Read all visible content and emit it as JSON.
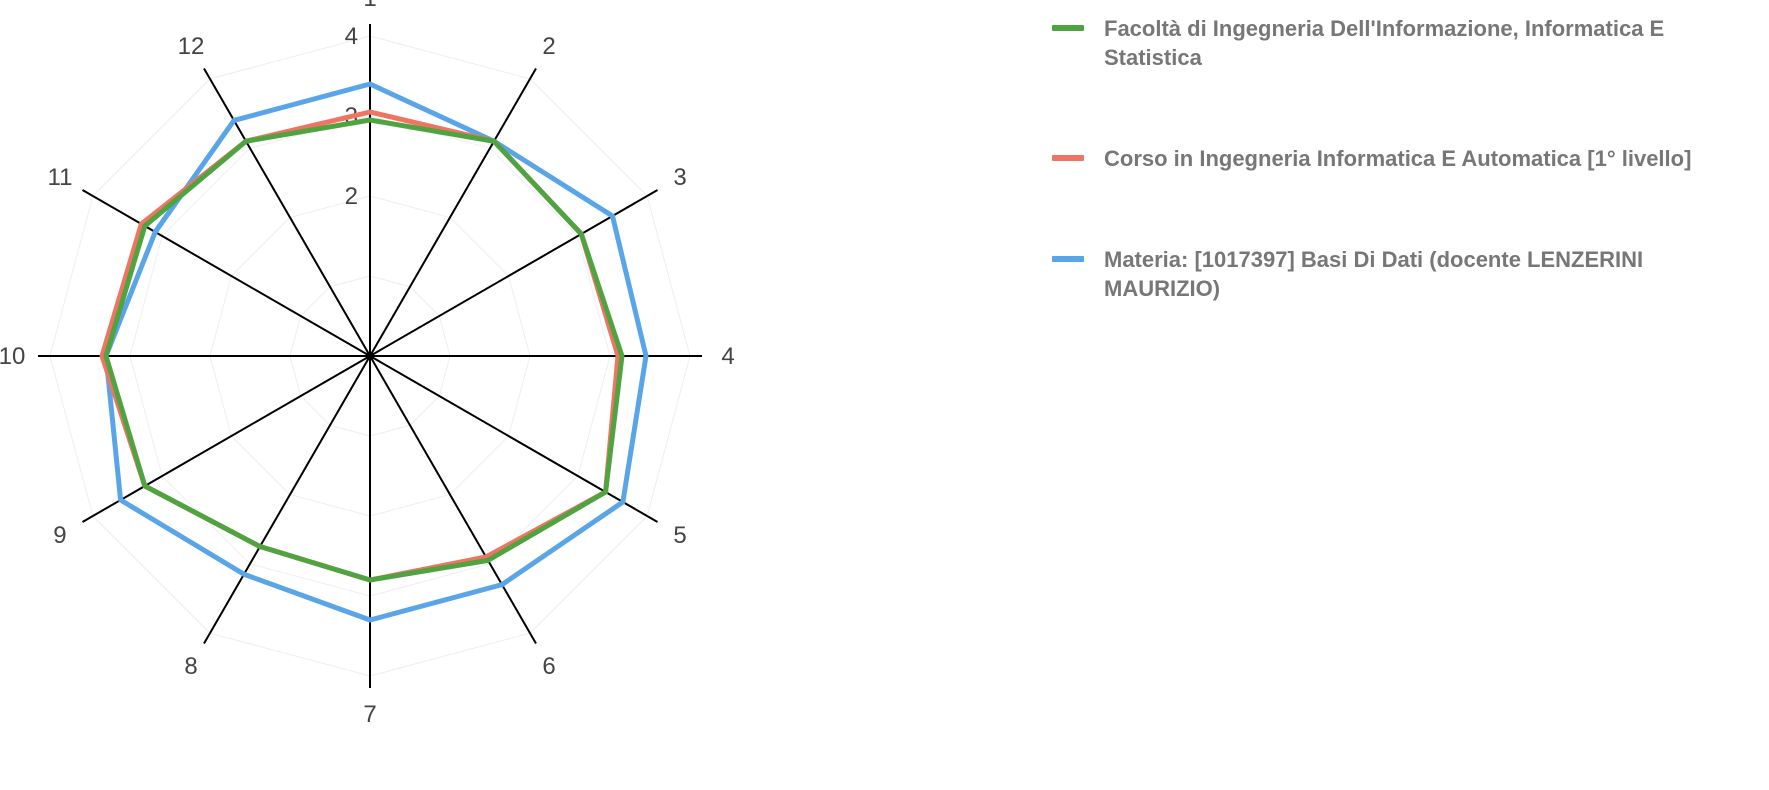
{
  "chart_data": {
    "type": "radar",
    "categories": [
      "1",
      "2",
      "3",
      "4",
      "5",
      "6",
      "7",
      "8",
      "9",
      "10",
      "11",
      "12"
    ],
    "r_ticks": [
      2,
      3,
      4
    ],
    "r_range": [
      0,
      4
    ],
    "legend_position": "right",
    "series": [
      {
        "name": "Materia: [1017397] Basi Di Dati (docente LENZERINI MAURIZIO)",
        "color": "#5aa5e8",
        "values": [
          3.4,
          3.1,
          3.5,
          3.45,
          3.65,
          3.3,
          3.3,
          3.15,
          3.6,
          3.3,
          3.1,
          3.4
        ]
      },
      {
        "name": "Corso in Ingegneria Informatica E Automatica [1° livello]",
        "color": "#ef7462",
        "values": [
          3.05,
          3.1,
          3.05,
          3.1,
          3.4,
          2.9,
          2.8,
          2.75,
          3.25,
          3.35,
          3.3,
          3.1
        ]
      },
      {
        "name": "Facoltà di Ingegneria Dell'Informazione, Informatica E Statistica",
        "color": "#4fa441",
        "values": [
          2.95,
          3.1,
          3.05,
          3.15,
          3.4,
          2.95,
          2.8,
          2.75,
          3.25,
          3.3,
          3.25,
          3.1
        ]
      }
    ]
  }
}
